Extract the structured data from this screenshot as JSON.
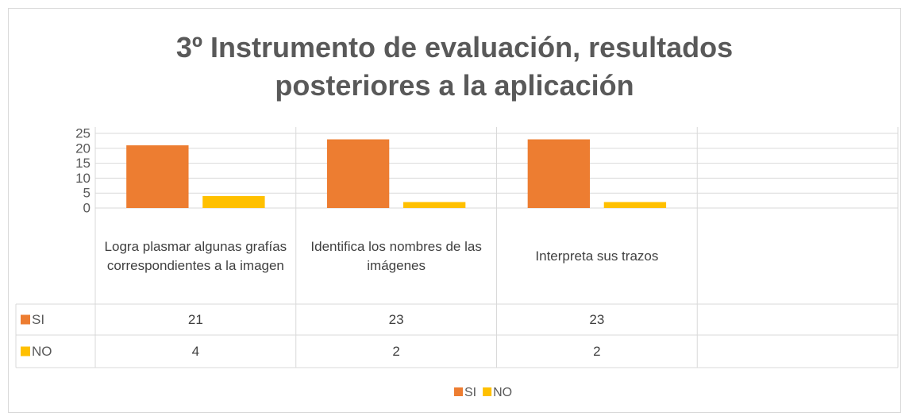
{
  "chart_data": {
    "type": "bar",
    "title": "3º Instrumento de evaluación, resultados posteriores a la aplicación",
    "categories": [
      "Logra plasmar algunas grafías correspondientes a la imagen",
      "Identifica los nombres de las imágenes",
      "Interpreta sus trazos",
      null
    ],
    "series": [
      {
        "name": "SI",
        "color": "#ed7d31",
        "values": [
          21,
          23,
          23,
          null
        ]
      },
      {
        "name": "NO",
        "color": "#ffc000",
        "values": [
          4,
          2,
          2,
          null
        ]
      }
    ],
    "ylim": [
      0,
      25
    ],
    "yticks": [
      0,
      5,
      10,
      15,
      20,
      25
    ],
    "grid": true,
    "legend": "bottom"
  }
}
